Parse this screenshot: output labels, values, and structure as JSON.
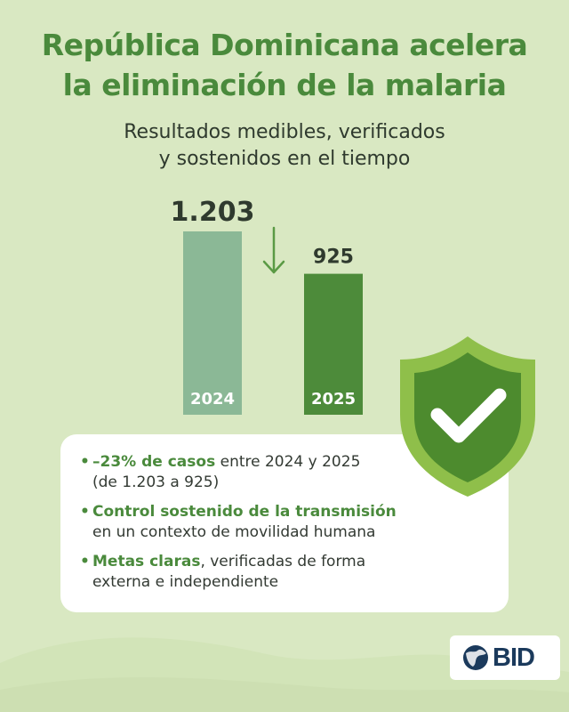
{
  "title": {
    "line1": "República Dominicana acelera",
    "line2": "la eliminación de la malaria"
  },
  "subtitle": {
    "line1": "Resultados medibles, verificados",
    "line2": "y sostenidos en el tiempo"
  },
  "chart_data": {
    "type": "bar",
    "categories": [
      "2024",
      "2025"
    ],
    "values": [
      1203,
      925
    ],
    "value_labels": [
      "1.203",
      "925"
    ],
    "colors": [
      "#8bb896",
      "#4d8b3a"
    ],
    "trend_arrow": "down",
    "ylim": [
      0,
      1203
    ],
    "grid": false,
    "title": "",
    "xlabel": "",
    "ylabel": ""
  },
  "card": {
    "bullets": [
      {
        "marker": "•",
        "highlight": "–23% de casos",
        "text": " entre 2024 y 2025",
        "line2": "(de 1.203 a 925)"
      },
      {
        "marker": "•",
        "highlight": "Control sostenido de la transmisión",
        "text": "",
        "line2": "en un contexto de movilidad humana"
      },
      {
        "marker": "•",
        "highlight": "Metas claras",
        "text": ", verificadas de forma",
        "line2": "externa e independiente"
      }
    ]
  },
  "badge": {
    "icon": "shield-check-icon",
    "colors": {
      "outer": "#8fbf4a",
      "inner": "#4d8b2e",
      "check": "#ffffff"
    }
  },
  "logo": {
    "text": "BID",
    "icon": "globe-icon"
  },
  "colors": {
    "background": "#d9e8c2",
    "accent_green": "#4a8a3c",
    "text_dark": "#2f3a2e"
  }
}
